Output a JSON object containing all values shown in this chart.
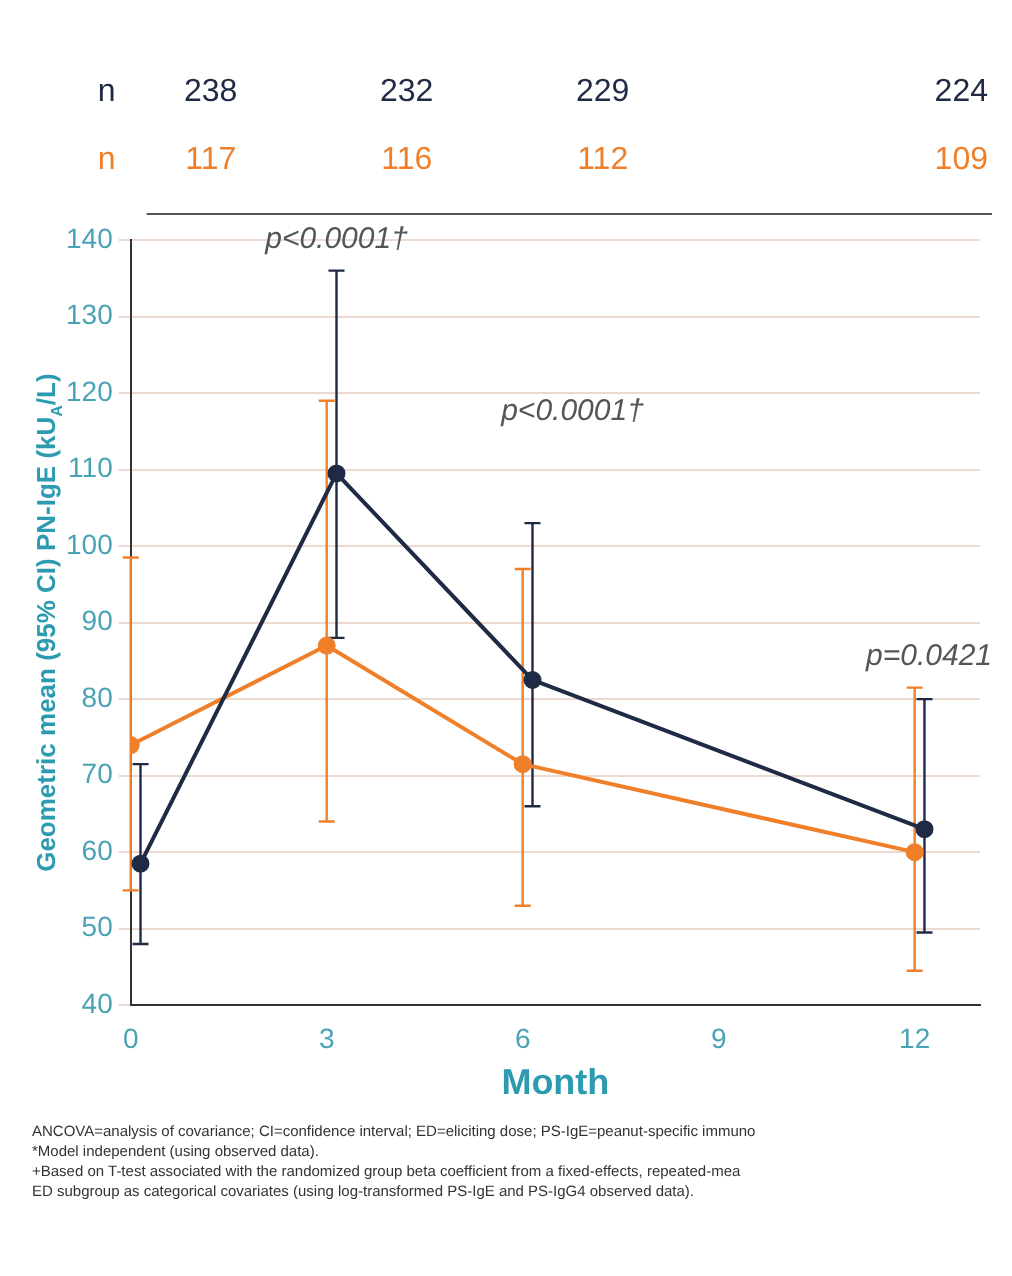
{
  "chart_data": {
    "type": "line",
    "xlabel": "Month",
    "ylabel": "Geometric mean (95% CI) PN-IgE (kU$_{A}$/L)",
    "xlim": [
      0,
      13
    ],
    "xticks": [
      0,
      3,
      6,
      9,
      12
    ],
    "ylim": [
      40,
      140
    ],
    "yticks": [
      40,
      50,
      60,
      70,
      80,
      90,
      100,
      110,
      120,
      130,
      140
    ],
    "grid": "y",
    "legend": false,
    "marker": "circle",
    "line_style": "solid",
    "series": [
      {
        "color": "#1f2a44",
        "x": [
          0.15,
          3.15,
          6.15,
          12.15
        ],
        "values": [
          58.5,
          109.5,
          82.5,
          63
        ],
        "errors": [
          [
            48,
            71.5
          ],
          [
            88,
            136
          ],
          [
            66,
            103
          ],
          [
            49.5,
            80
          ]
        ]
      },
      {
        "color": "#f07f2a",
        "x": [
          0,
          3,
          6,
          12
        ],
        "values": [
          74,
          87,
          71.5,
          60
        ],
        "errors": [
          [
            55,
            98.5
          ],
          [
            64,
            119
          ],
          [
            53,
            97
          ],
          [
            44.5,
            81.5
          ]
        ]
      }
    ],
    "annotations": [
      "n",
      "238",
      "232",
      "229",
      "224",
      "n",
      "117",
      "116",
      "112",
      "109",
      "p<0.0001†",
      "p<0.0001†",
      "p=0.0421",
      "ANCOVA=analysis of covariance; CI=confidence interval; ED=eliciting dose; PS-IgE=peanut-specific immuno",
      "*Model independent (using observed data).",
      "+Based on T-test associated with the randomized group beta coefficient from a fixed-effects, repeated-mea",
      "ED subgroup as categorical covariates (using log-transformed PS-IgE and PS-IgG4 observed data)."
    ]
  }
}
